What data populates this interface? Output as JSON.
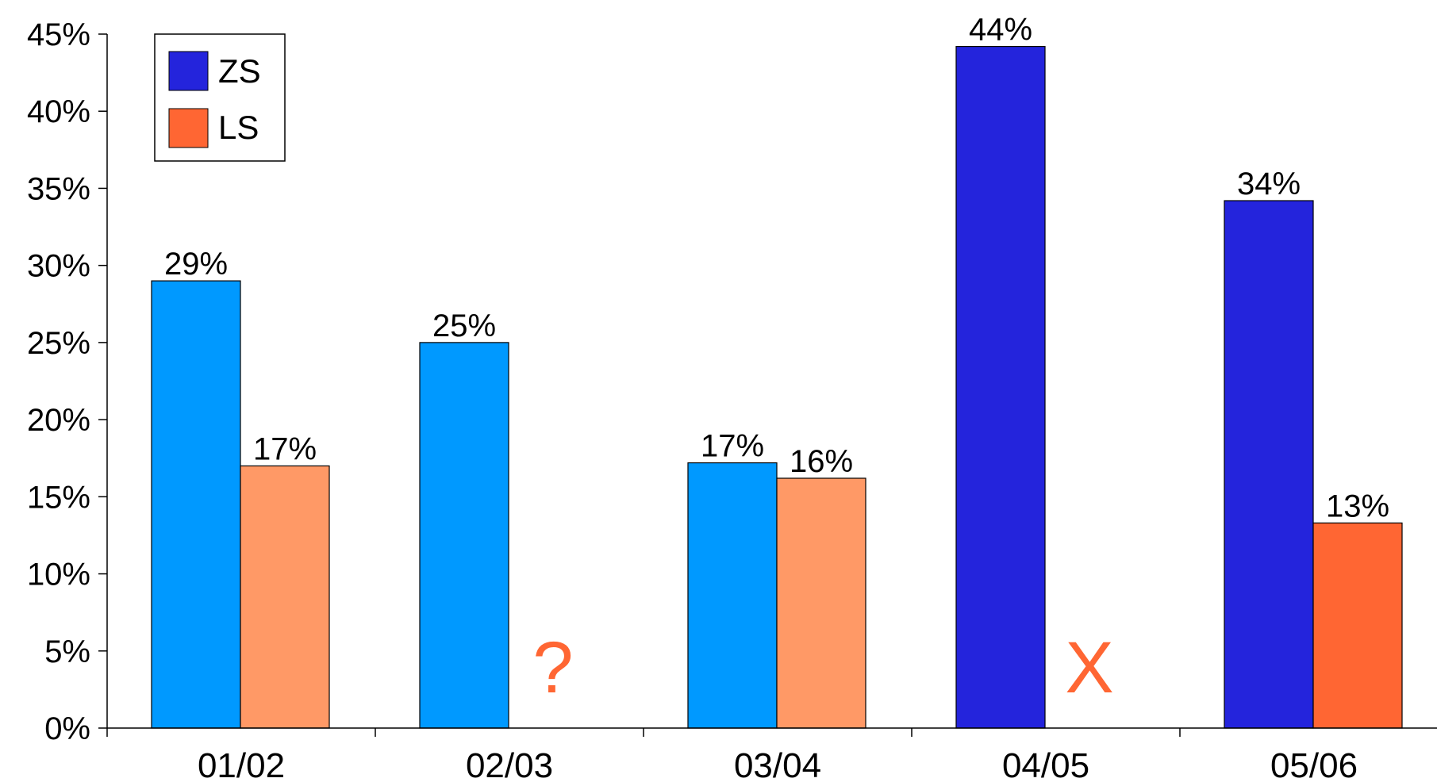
{
  "chart_data": {
    "type": "bar",
    "categories": [
      "01/02",
      "02/03",
      "03/04",
      "04/05",
      "05/06"
    ],
    "series": [
      {
        "name": "ZS",
        "legend_color": "#2424DC",
        "values": [
          29,
          25,
          17.2,
          44.2,
          34.2
        ],
        "labels": [
          "29%",
          "25%",
          "17%",
          "44%",
          "34%"
        ],
        "colors": [
          "#0099FF",
          "#0099FF",
          "#0099FF",
          "#2424DC",
          "#2424DC"
        ]
      },
      {
        "name": "LS",
        "legend_color": "#FF6633",
        "values": [
          17,
          null,
          16.2,
          null,
          13.3
        ],
        "labels": [
          "17%",
          "",
          "16%",
          "",
          "13%"
        ],
        "colors": [
          "#FF9966",
          null,
          "#FF9966",
          null,
          "#FF6633"
        ]
      }
    ],
    "markers": [
      {
        "category": "02/03",
        "text": "?",
        "color": "#FF6633"
      },
      {
        "category": "04/05",
        "text": "X",
        "color": "#FF6633"
      }
    ],
    "ylim": [
      0,
      45
    ],
    "yticks": [
      "0%",
      "5%",
      "10%",
      "15%",
      "20%",
      "25%",
      "30%",
      "35%",
      "40%",
      "45%"
    ],
    "ytick_step": 5,
    "legend": "top-left",
    "grid": false,
    "title": "",
    "xlabel": "",
    "ylabel": ""
  }
}
